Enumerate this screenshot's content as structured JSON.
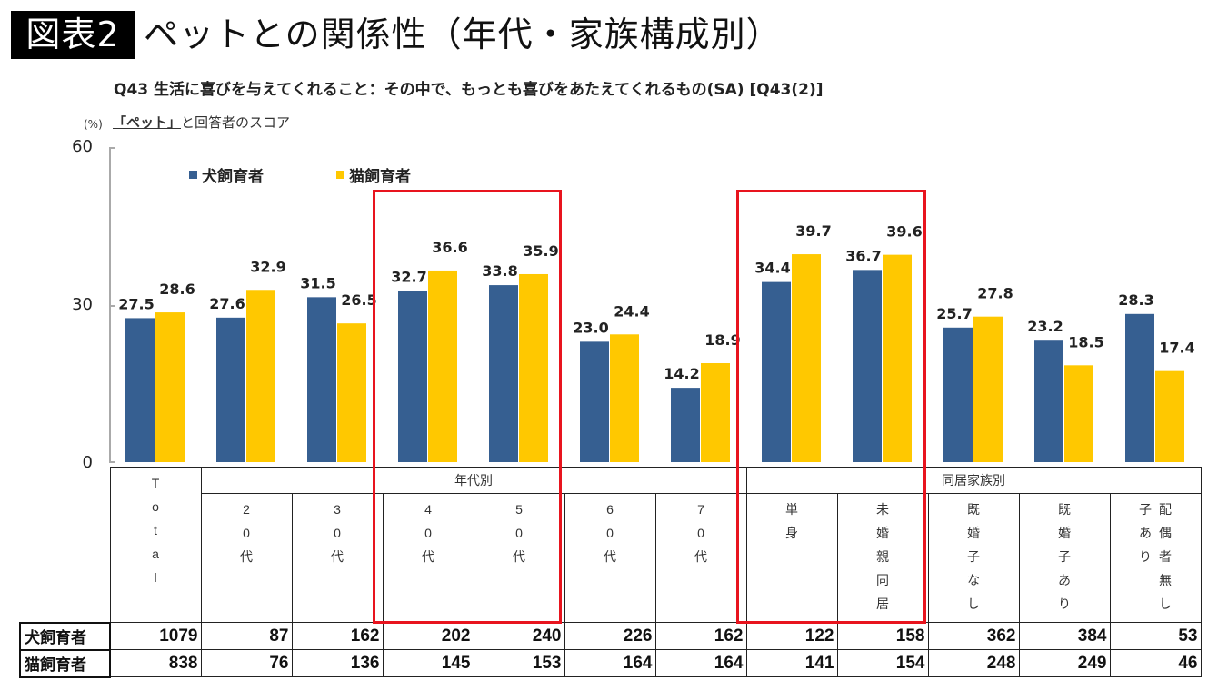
{
  "header": {
    "badge": "図表2",
    "title": "ペットとの関係性（年代・家族構成別）",
    "question": "Q43 生活に喜びを与えてくれること：その中で、もっとも喜びをあたえてくれるもの(SA) [Q43(2)]",
    "unit": "(%)",
    "subtitle_pet": "「ペット」",
    "subtitle_rest": "と回答者のスコア"
  },
  "colors": {
    "dog": "#365f91",
    "cat": "#ffc800",
    "highlight": "#e8141e"
  },
  "chart_data": {
    "type": "bar",
    "title": "「ペット」と回答者のスコア",
    "xlabel": "",
    "ylabel": "(%)",
    "ylim": [
      0,
      60
    ],
    "yticks": [
      0,
      30,
      60
    ],
    "grid": false,
    "legend_position": "top-left",
    "categories": [
      "Total",
      "20代",
      "30代",
      "40代",
      "50代",
      "60代",
      "70代",
      "単身",
      "未婚親同居",
      "既婚子なし",
      "既婚子あり",
      "配偶者無し子あり"
    ],
    "series": [
      {
        "name": "犬飼育者",
        "values": [
          27.5,
          27.6,
          31.5,
          32.7,
          33.8,
          23.0,
          14.2,
          34.4,
          36.7,
          25.7,
          23.2,
          28.3
        ]
      },
      {
        "name": "猫飼育者",
        "values": [
          28.6,
          32.9,
          26.5,
          36.6,
          35.9,
          24.4,
          18.9,
          39.7,
          39.6,
          27.8,
          18.5,
          17.4
        ]
      }
    ],
    "labels": [
      "27.5/28.6",
      "27.6/32.9",
      "31.5/26.5",
      "32.7/36.6",
      "33.8/35.9",
      "23.0/24.4",
      "14.2/18.9",
      "34.4/39.7",
      "36.7/39.6",
      "25.7/27.8",
      "23.2/18.5",
      "28.3/17.4"
    ],
    "highlighted_categories": [
      [
        "40代",
        "50代"
      ],
      [
        "単身",
        "未婚親同居"
      ]
    ]
  },
  "table": {
    "groups": {
      "age": "年代別",
      "family": "同居家族別"
    },
    "col_headers": {
      "total": [
        "T",
        "o",
        "t",
        "a",
        "l"
      ],
      "c20": [
        "2",
        "0",
        "代"
      ],
      "c30": [
        "3",
        "0",
        "代"
      ],
      "c40": [
        "4",
        "0",
        "代"
      ],
      "c50": [
        "5",
        "0",
        "代"
      ],
      "c60": [
        "6",
        "0",
        "代"
      ],
      "c70": [
        "7",
        "0",
        "代"
      ],
      "single": [
        "単",
        "身"
      ],
      "unmarried": [
        "未",
        "婚",
        "親",
        "同",
        "居"
      ],
      "married_nokid": [
        "既",
        "婚",
        "子",
        "な",
        "し"
      ],
      "married_kid": [
        "既",
        "婚",
        "子",
        "あ",
        "り"
      ],
      "nospouse_a": [
        "子",
        "あ",
        "り"
      ],
      "nospouse_b": [
        "配",
        "偶",
        "者",
        "無",
        "し"
      ]
    },
    "rows": [
      {
        "label": "犬飼育者",
        "values": [
          "1079",
          "87",
          "162",
          "202",
          "240",
          "226",
          "162",
          "122",
          "158",
          "362",
          "384",
          "53"
        ]
      },
      {
        "label": "猫飼育者",
        "values": [
          "838",
          "76",
          "136",
          "145",
          "153",
          "164",
          "164",
          "141",
          "154",
          "248",
          "249",
          "46"
        ]
      }
    ]
  }
}
